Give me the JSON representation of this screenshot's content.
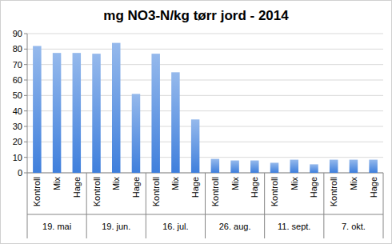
{
  "chart_data": {
    "type": "bar",
    "title": "mg NO3-N/kg tørr jord - 2014",
    "groups": [
      "19. mai",
      "19. jun.",
      "16. jul.",
      "26. aug.",
      "11. sept.",
      "7. okt."
    ],
    "categories": [
      "Kontroll",
      "Mix",
      "Hage",
      "Kontroll",
      "Mix",
      "Hage",
      "Kontroll",
      "Mix",
      "Hage",
      "Kontroll",
      "Mix",
      "Hage",
      "Kontroll",
      "Mix",
      "Hage",
      "Kontroll",
      "Mix",
      "Hage"
    ],
    "values": [
      82,
      77.5,
      77.5,
      77,
      84,
      51,
      77,
      65,
      34.5,
      9,
      8,
      8,
      6.5,
      8.5,
      5.5,
      8.5,
      8.5,
      8.5
    ],
    "color": "#3f7fdc",
    "ylim": [
      0,
      90
    ],
    "yticks": [
      0,
      10,
      20,
      30,
      40,
      50,
      60,
      70,
      80,
      90
    ],
    "grid": true
  }
}
